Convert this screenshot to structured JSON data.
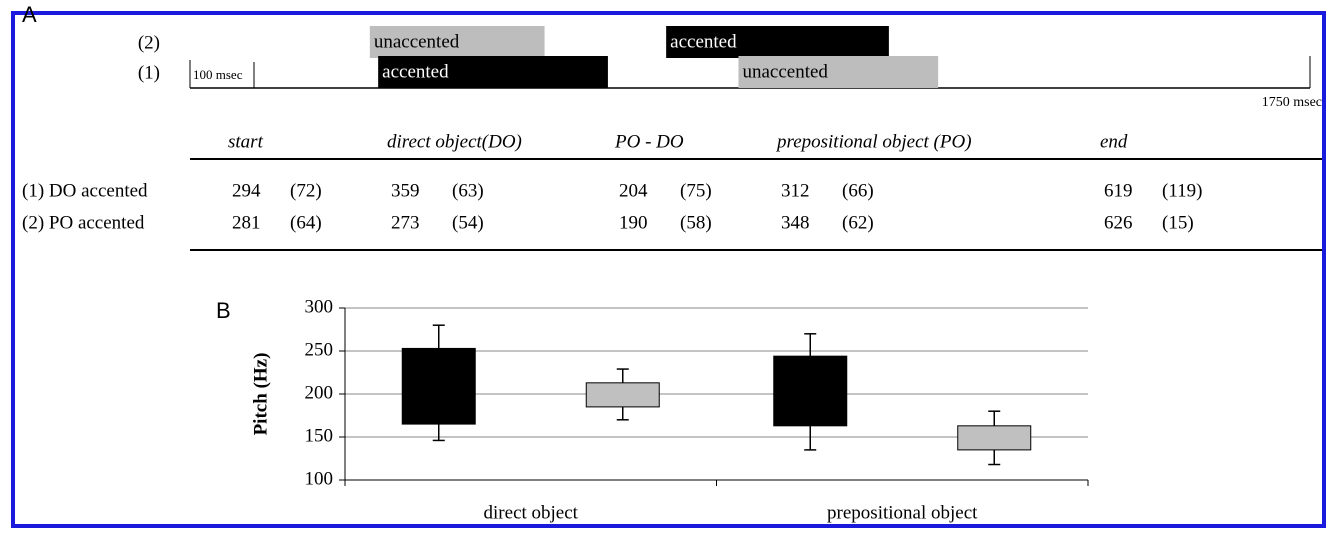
{
  "panel_a": {
    "label": "A",
    "timeline": {
      "rows": [
        {
          "label": "(2)",
          "first": "unaccented",
          "second": "accented"
        },
        {
          "label": "(1)",
          "first": "accented",
          "second": "unaccented"
        }
      ],
      "xlim": [
        0,
        1750
      ],
      "scale_tick": {
        "value": 100,
        "label": "100 msec"
      },
      "end_tick": {
        "value": 1750,
        "label": "1750 msec"
      }
    },
    "table": {
      "header": [
        "start",
        "direct object(DO)",
        "PO - DO",
        "prepositional object (PO)",
        "end"
      ],
      "rows": [
        {
          "label": "(1) DO accented",
          "means": [
            294,
            359,
            204,
            312,
            619
          ],
          "sds": [
            "(72)",
            "(63)",
            "(75)",
            "(66)",
            "(119)"
          ]
        },
        {
          "label": "(2) PO accented",
          "means": [
            281,
            273,
            190,
            348,
            626
          ],
          "sds": [
            "(64)",
            "(54)",
            "(58)",
            "(62)",
            "(15)"
          ]
        }
      ]
    }
  },
  "chart_data": {
    "type": "box",
    "panel_label": "B",
    "y_label": "Pitch (Hz)",
    "categories": [
      "direct object",
      "prepositional object"
    ],
    "series": [
      {
        "color": "#000000",
        "lows": [
          146,
          135
        ],
        "bottoms": [
          165,
          163
        ],
        "tops": [
          253,
          244
        ],
        "highs": [
          280,
          270
        ]
      },
      {
        "color": "#c0c0c0",
        "lows": [
          170,
          118
        ],
        "bottoms": [
          185,
          135
        ],
        "tops": [
          213,
          163
        ],
        "highs": [
          229,
          180
        ]
      }
    ],
    "ylim": [
      100,
      300
    ],
    "yticks": [
      100,
      150,
      200,
      250,
      300
    ],
    "grid": true
  }
}
